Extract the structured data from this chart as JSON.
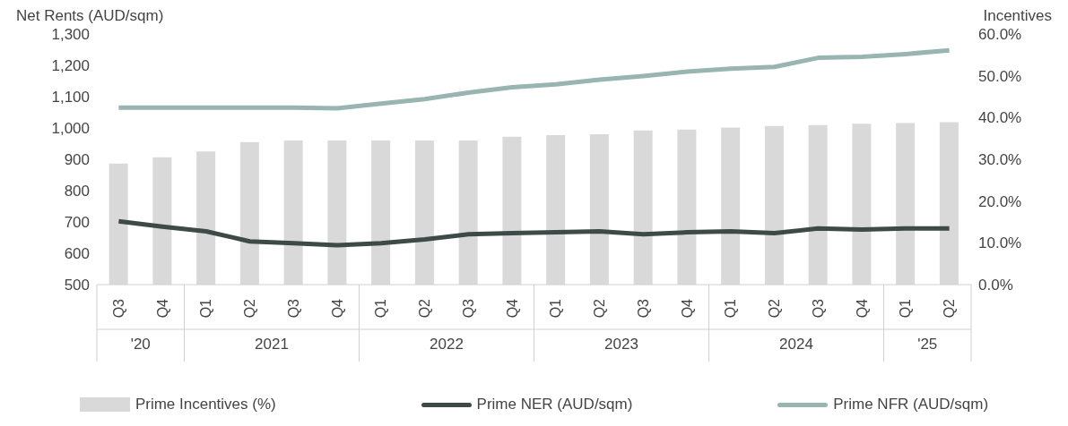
{
  "chart_data": {
    "type": "bar",
    "ylabel": "Net Rents (AUD/sqm)",
    "y2label": "Incentives",
    "categories": [
      "Q3",
      "Q4",
      "Q1",
      "Q2",
      "Q3",
      "Q4",
      "Q1",
      "Q2",
      "Q3",
      "Q4",
      "Q1",
      "Q2",
      "Q3",
      "Q4",
      "Q1",
      "Q2",
      "Q3",
      "Q4",
      "Q1",
      "Q2"
    ],
    "annotations": [
      "'20",
      "2021",
      "2022",
      "2023",
      "2024",
      "'25"
    ],
    "series": [
      {
        "name": "Prime Incentives (%)",
        "axis": "y2",
        "color": "#d9d9d9",
        "values": [
          29.0,
          30.5,
          31.9,
          34.1,
          34.5,
          34.5,
          34.5,
          34.5,
          34.5,
          35.4,
          35.8,
          36.0,
          36.9,
          37.1,
          37.6,
          38.0,
          38.2,
          38.5,
          38.7,
          38.9
        ]
      },
      {
        "name": "Prime NER (AUD/sqm)",
        "type": "line",
        "color": "#3d4a48",
        "values": [
          702,
          685,
          670,
          638,
          632,
          626,
          632,
          644,
          661,
          664,
          667,
          670,
          661,
          667,
          670,
          664,
          679,
          676,
          679,
          679
        ]
      },
      {
        "name": "Prime NFR (AUD/sqm)",
        "type": "line",
        "color": "#98b5b1",
        "values": [
          1065,
          1065,
          1065,
          1065,
          1065,
          1063,
          1078,
          1092,
          1113,
          1130,
          1139,
          1154,
          1166,
          1180,
          1189,
          1195,
          1224,
          1227,
          1236,
          1248
        ]
      }
    ],
    "ylim": [
      500,
      1300
    ],
    "yticks": [
      500,
      600,
      700,
      800,
      900,
      {
        "value": 1000,
        "label": "1,000"
      },
      {
        "value": 1100,
        "label": "1,100"
      },
      {
        "value": 1200,
        "label": "1,200"
      },
      {
        "value": 1300,
        "label": "1,300"
      }
    ],
    "y2lim": [
      0,
      60
    ],
    "y2ticks": [
      {
        "value": 0,
        "label": "0.0%"
      },
      {
        "value": 10,
        "label": "10.0%"
      },
      {
        "value": 20,
        "label": "20.0%"
      },
      {
        "value": 30,
        "label": "30.0%"
      },
      {
        "value": 40,
        "label": "40.0%"
      },
      {
        "value": 50,
        "label": "50.0%"
      },
      {
        "value": 60,
        "label": "60.0%"
      }
    ],
    "legend": "bottom",
    "marker": "none",
    "line_style": "solid"
  }
}
